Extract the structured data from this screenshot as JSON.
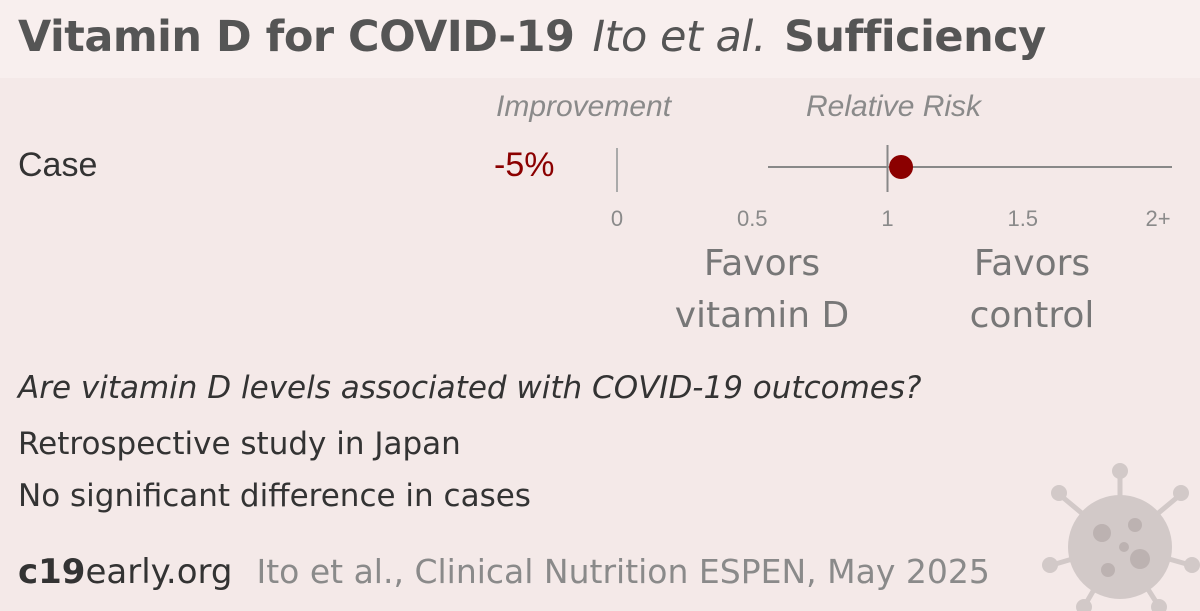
{
  "header": {
    "title": "Vitamin D for COVID-19",
    "study": "Ito et al.",
    "group": "Sufficiency"
  },
  "columns": {
    "improvement": "Improvement",
    "relative_risk": "Relative Risk"
  },
  "chart_data": {
    "type": "forest",
    "rows": [
      {
        "label": "Case",
        "improvement": "-5%",
        "relative_risk": 1.05
      }
    ],
    "x_ticks": [
      {
        "value": 0,
        "label": "0"
      },
      {
        "value": 0.5,
        "label": "0.5"
      },
      {
        "value": 1,
        "label": "1"
      },
      {
        "value": 1.5,
        "label": "1.5"
      },
      {
        "value": 2,
        "label": "2+"
      }
    ],
    "xlim": [
      0,
      2
    ],
    "reference_line": 1,
    "favors_left": [
      "Favors",
      "vitamin D"
    ],
    "favors_right": [
      "Favors",
      "control"
    ],
    "colors": {
      "point": "#8b0000",
      "axis": "#888888",
      "improvement": "#8b0000"
    }
  },
  "summary": {
    "question": "Are vitamin D levels associated with COVID-19 outcomes?",
    "lines": [
      "Retrospective study in Japan",
      "No significant difference in cases"
    ]
  },
  "footer": {
    "site_bold": "c19",
    "site_rest": "early.org",
    "citation": "Ito et al., Clinical Nutrition ESPEN, May 2025"
  }
}
